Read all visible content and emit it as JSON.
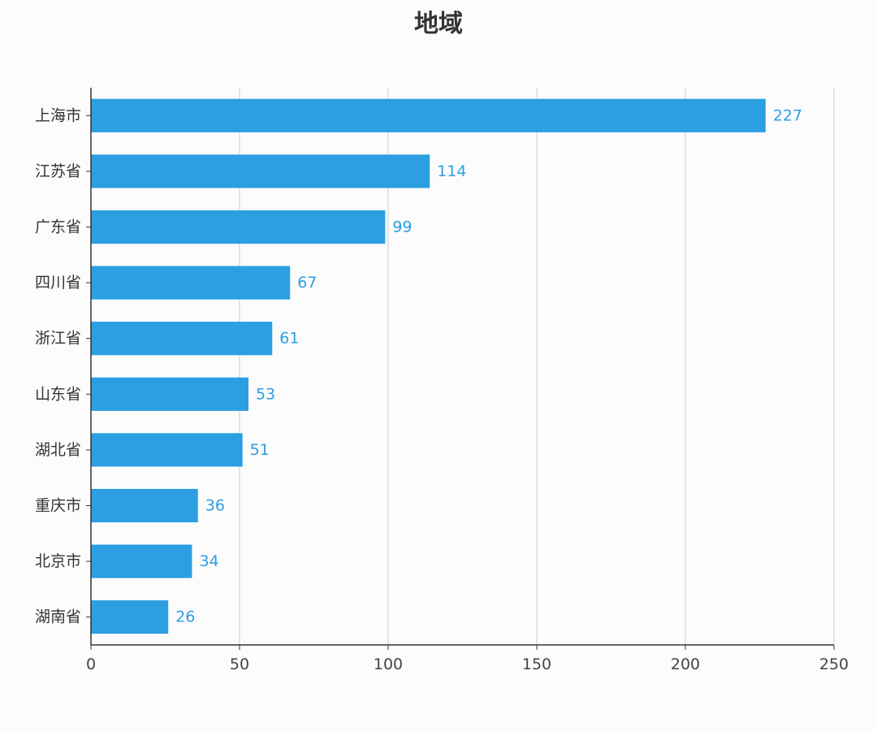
{
  "chart_data": {
    "type": "bar",
    "orientation": "horizontal",
    "title": "地域",
    "xlabel": "",
    "ylabel": "",
    "categories": [
      "上海市",
      "江苏省",
      "广东省",
      "四川省",
      "浙江省",
      "山东省",
      "湖北省",
      "重庆市",
      "北京市",
      "湖南省"
    ],
    "values": [
      227,
      114,
      99,
      67,
      61,
      53,
      51,
      36,
      34,
      26
    ],
    "xlim": [
      0,
      250
    ],
    "xticks": [
      0,
      50,
      100,
      150,
      200,
      250
    ],
    "grid": true,
    "legend": "none",
    "data_labels": true
  },
  "colors": {
    "bar": "#2b9fe2",
    "data_label": "#2b9fe2",
    "grid": "#cccccc",
    "axis": "#333333"
  }
}
